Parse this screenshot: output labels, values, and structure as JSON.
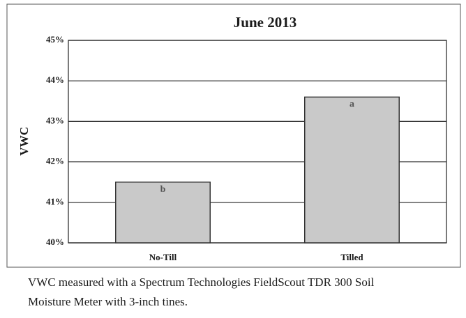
{
  "chart_data": {
    "type": "bar",
    "title": "June 2013",
    "ylabel": "VWC",
    "categories": [
      "No-Till",
      "Tilled"
    ],
    "values": [
      41.5,
      43.6
    ],
    "annotations": [
      "b",
      "a"
    ],
    "color": "#c9c9c9",
    "ylim": [
      40,
      45
    ],
    "yticks": [
      {
        "value": 40,
        "label": "40%"
      },
      {
        "value": 41,
        "label": "41%"
      },
      {
        "value": 42,
        "label": "42%"
      },
      {
        "value": 43,
        "label": "43%"
      },
      {
        "value": 44,
        "label": "44%"
      },
      {
        "value": 45,
        "label": "45%"
      }
    ],
    "grid": true,
    "caption": [
      "VWC measured with a Spectrum Technologies FieldScout TDR 300 Soil",
      "Moisture Meter with 3-inch tines."
    ]
  }
}
